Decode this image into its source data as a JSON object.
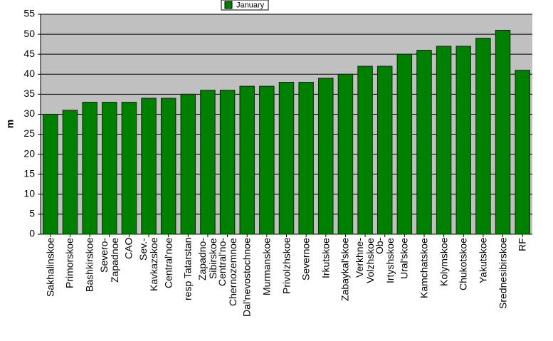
{
  "chart_data": {
    "type": "bar",
    "y_label": "m",
    "categories": [
      "Sakhalinskoe",
      "Primorskoe",
      "Bashkirskoe",
      "Severo-\nZapadnoe",
      "CAO",
      "Sev.-\nKavkazskoe",
      "Central'noe",
      "resp Tatarstan",
      "Zapadno-\nSibirskoe",
      "Central'no-\nChernozemnoe",
      "Dal'nevostochnoe",
      "Murmanskoe",
      "Privolzhskoe",
      "Severnoe",
      "Irkutskoe",
      "Zabaykal'skoe",
      "Verkhne-\nVolzhskoe",
      "Ob-\nIrtyshskoe",
      "Ural'skoe",
      "Kamchatskoe",
      "Kolymskoe",
      "Chukotskoe",
      "Yakutskoe",
      "Srednesibirskoe",
      "RF"
    ],
    "series": [
      {
        "name": "January",
        "color": "#008000",
        "values": [
          30,
          31,
          33,
          33,
          33,
          34,
          34,
          35,
          36,
          36,
          37,
          37,
          38,
          38,
          39,
          40,
          42,
          42,
          45,
          46,
          47,
          47,
          49,
          51,
          41
        ]
      }
    ],
    "ylim": [
      0,
      55
    ],
    "yticks": [
      0,
      5,
      10,
      15,
      20,
      25,
      30,
      35,
      40,
      45,
      50,
      55
    ],
    "grid": true
  }
}
